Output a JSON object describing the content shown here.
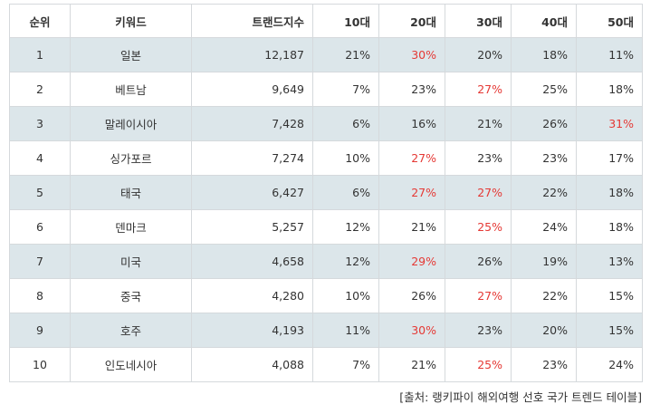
{
  "columns": [
    "순위",
    "키워드",
    "트랜드지수",
    "10대",
    "20대",
    "30대",
    "40대",
    "50대"
  ],
  "rows": [
    {
      "rank": "1",
      "keyword": "일본",
      "index": "12,187",
      "v10": "21%",
      "v20": "30%",
      "v30": "20%",
      "v40": "18%",
      "v50": "11%",
      "max": "v20"
    },
    {
      "rank": "2",
      "keyword": "베트남",
      "index": "9,649",
      "v10": "7%",
      "v20": "23%",
      "v30": "27%",
      "v40": "25%",
      "v50": "18%",
      "max": "v30"
    },
    {
      "rank": "3",
      "keyword": "말레이시아",
      "index": "7,428",
      "v10": "6%",
      "v20": "16%",
      "v30": "21%",
      "v40": "26%",
      "v50": "31%",
      "max": "v50"
    },
    {
      "rank": "4",
      "keyword": "싱가포르",
      "index": "7,274",
      "v10": "10%",
      "v20": "27%",
      "v30": "23%",
      "v40": "23%",
      "v50": "17%",
      "max": "v20"
    },
    {
      "rank": "5",
      "keyword": "태국",
      "index": "6,427",
      "v10": "6%",
      "v20": "27%",
      "v30": "27%",
      "v40": "22%",
      "v50": "18%",
      "max": "v20,v30"
    },
    {
      "rank": "6",
      "keyword": "덴마크",
      "index": "5,257",
      "v10": "12%",
      "v20": "21%",
      "v30": "25%",
      "v40": "24%",
      "v50": "18%",
      "max": "v30"
    },
    {
      "rank": "7",
      "keyword": "미국",
      "index": "4,658",
      "v10": "12%",
      "v20": "29%",
      "v30": "26%",
      "v40": "19%",
      "v50": "13%",
      "max": "v20"
    },
    {
      "rank": "8",
      "keyword": "중국",
      "index": "4,280",
      "v10": "10%",
      "v20": "26%",
      "v30": "27%",
      "v40": "22%",
      "v50": "15%",
      "max": "v30"
    },
    {
      "rank": "9",
      "keyword": "호주",
      "index": "4,193",
      "v10": "11%",
      "v20": "30%",
      "v30": "23%",
      "v40": "20%",
      "v50": "15%",
      "max": "v20"
    },
    {
      "rank": "10",
      "keyword": "인도네시아",
      "index": "4,088",
      "v10": "7%",
      "v20": "21%",
      "v30": "25%",
      "v40": "23%",
      "v50": "24%",
      "max": "v30"
    }
  ],
  "source": "[출처: 랭키파이 해외여행 선호 국가 트렌드 테이블]",
  "colors": {
    "highlight": "#e53935",
    "shade": "#dce6ea",
    "border": "#d5d9dc"
  }
}
